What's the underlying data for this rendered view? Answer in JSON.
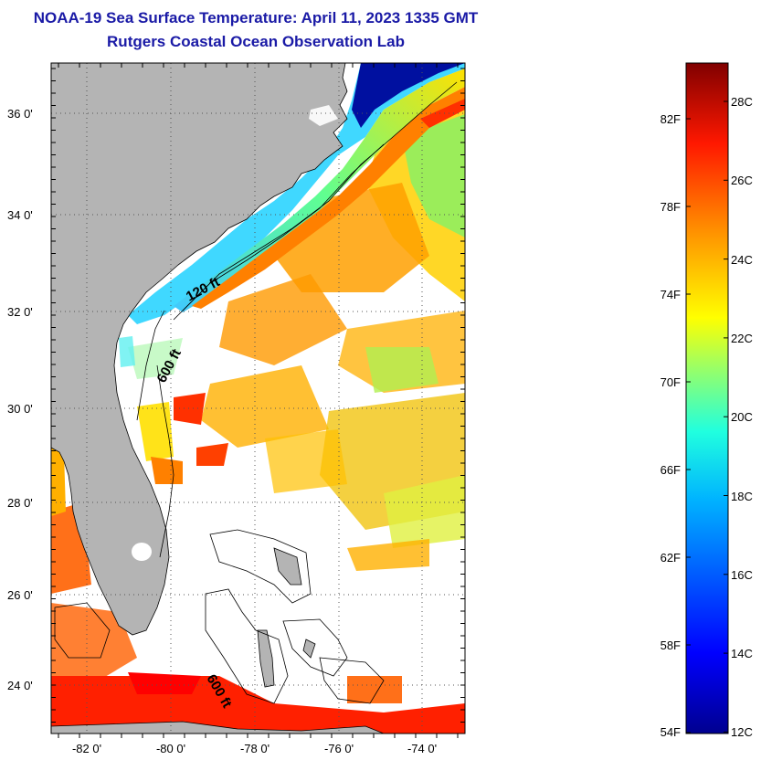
{
  "header": {
    "title": "NOAA-19 Sea Surface Temperature:  April 11, 2023 1335 GMT",
    "subtitle": "Rutgers Coastal Ocean Observation Lab"
  },
  "map": {
    "lat_ticks": [
      "36 0'",
      "34 0'",
      "32 0'",
      "30 0'",
      "28 0'",
      "26 0'",
      "24 0'"
    ],
    "lon_ticks": [
      "-82 0'",
      "-80 0'",
      "-78 0'",
      "-76 0'",
      "-74 0'"
    ],
    "contour_labels": [
      "120 ft",
      "600 ft",
      "600 ft"
    ],
    "land_color": "#b4b4b4",
    "cloud_color": "#ffffff"
  },
  "colorbar": {
    "fahrenheit": [
      "82F",
      "78F",
      "74F",
      "70F",
      "66F",
      "62F",
      "58F",
      "54F"
    ],
    "celsius": [
      "28C",
      "26C",
      "24C",
      "22C",
      "20C",
      "18C",
      "16C",
      "14C",
      "12C"
    ],
    "scale_colors": [
      "#7f0000",
      "#ff0000",
      "#ff8000",
      "#ffff00",
      "#80ff80",
      "#00ffff",
      "#0080ff",
      "#0000ff",
      "#00008f"
    ]
  }
}
